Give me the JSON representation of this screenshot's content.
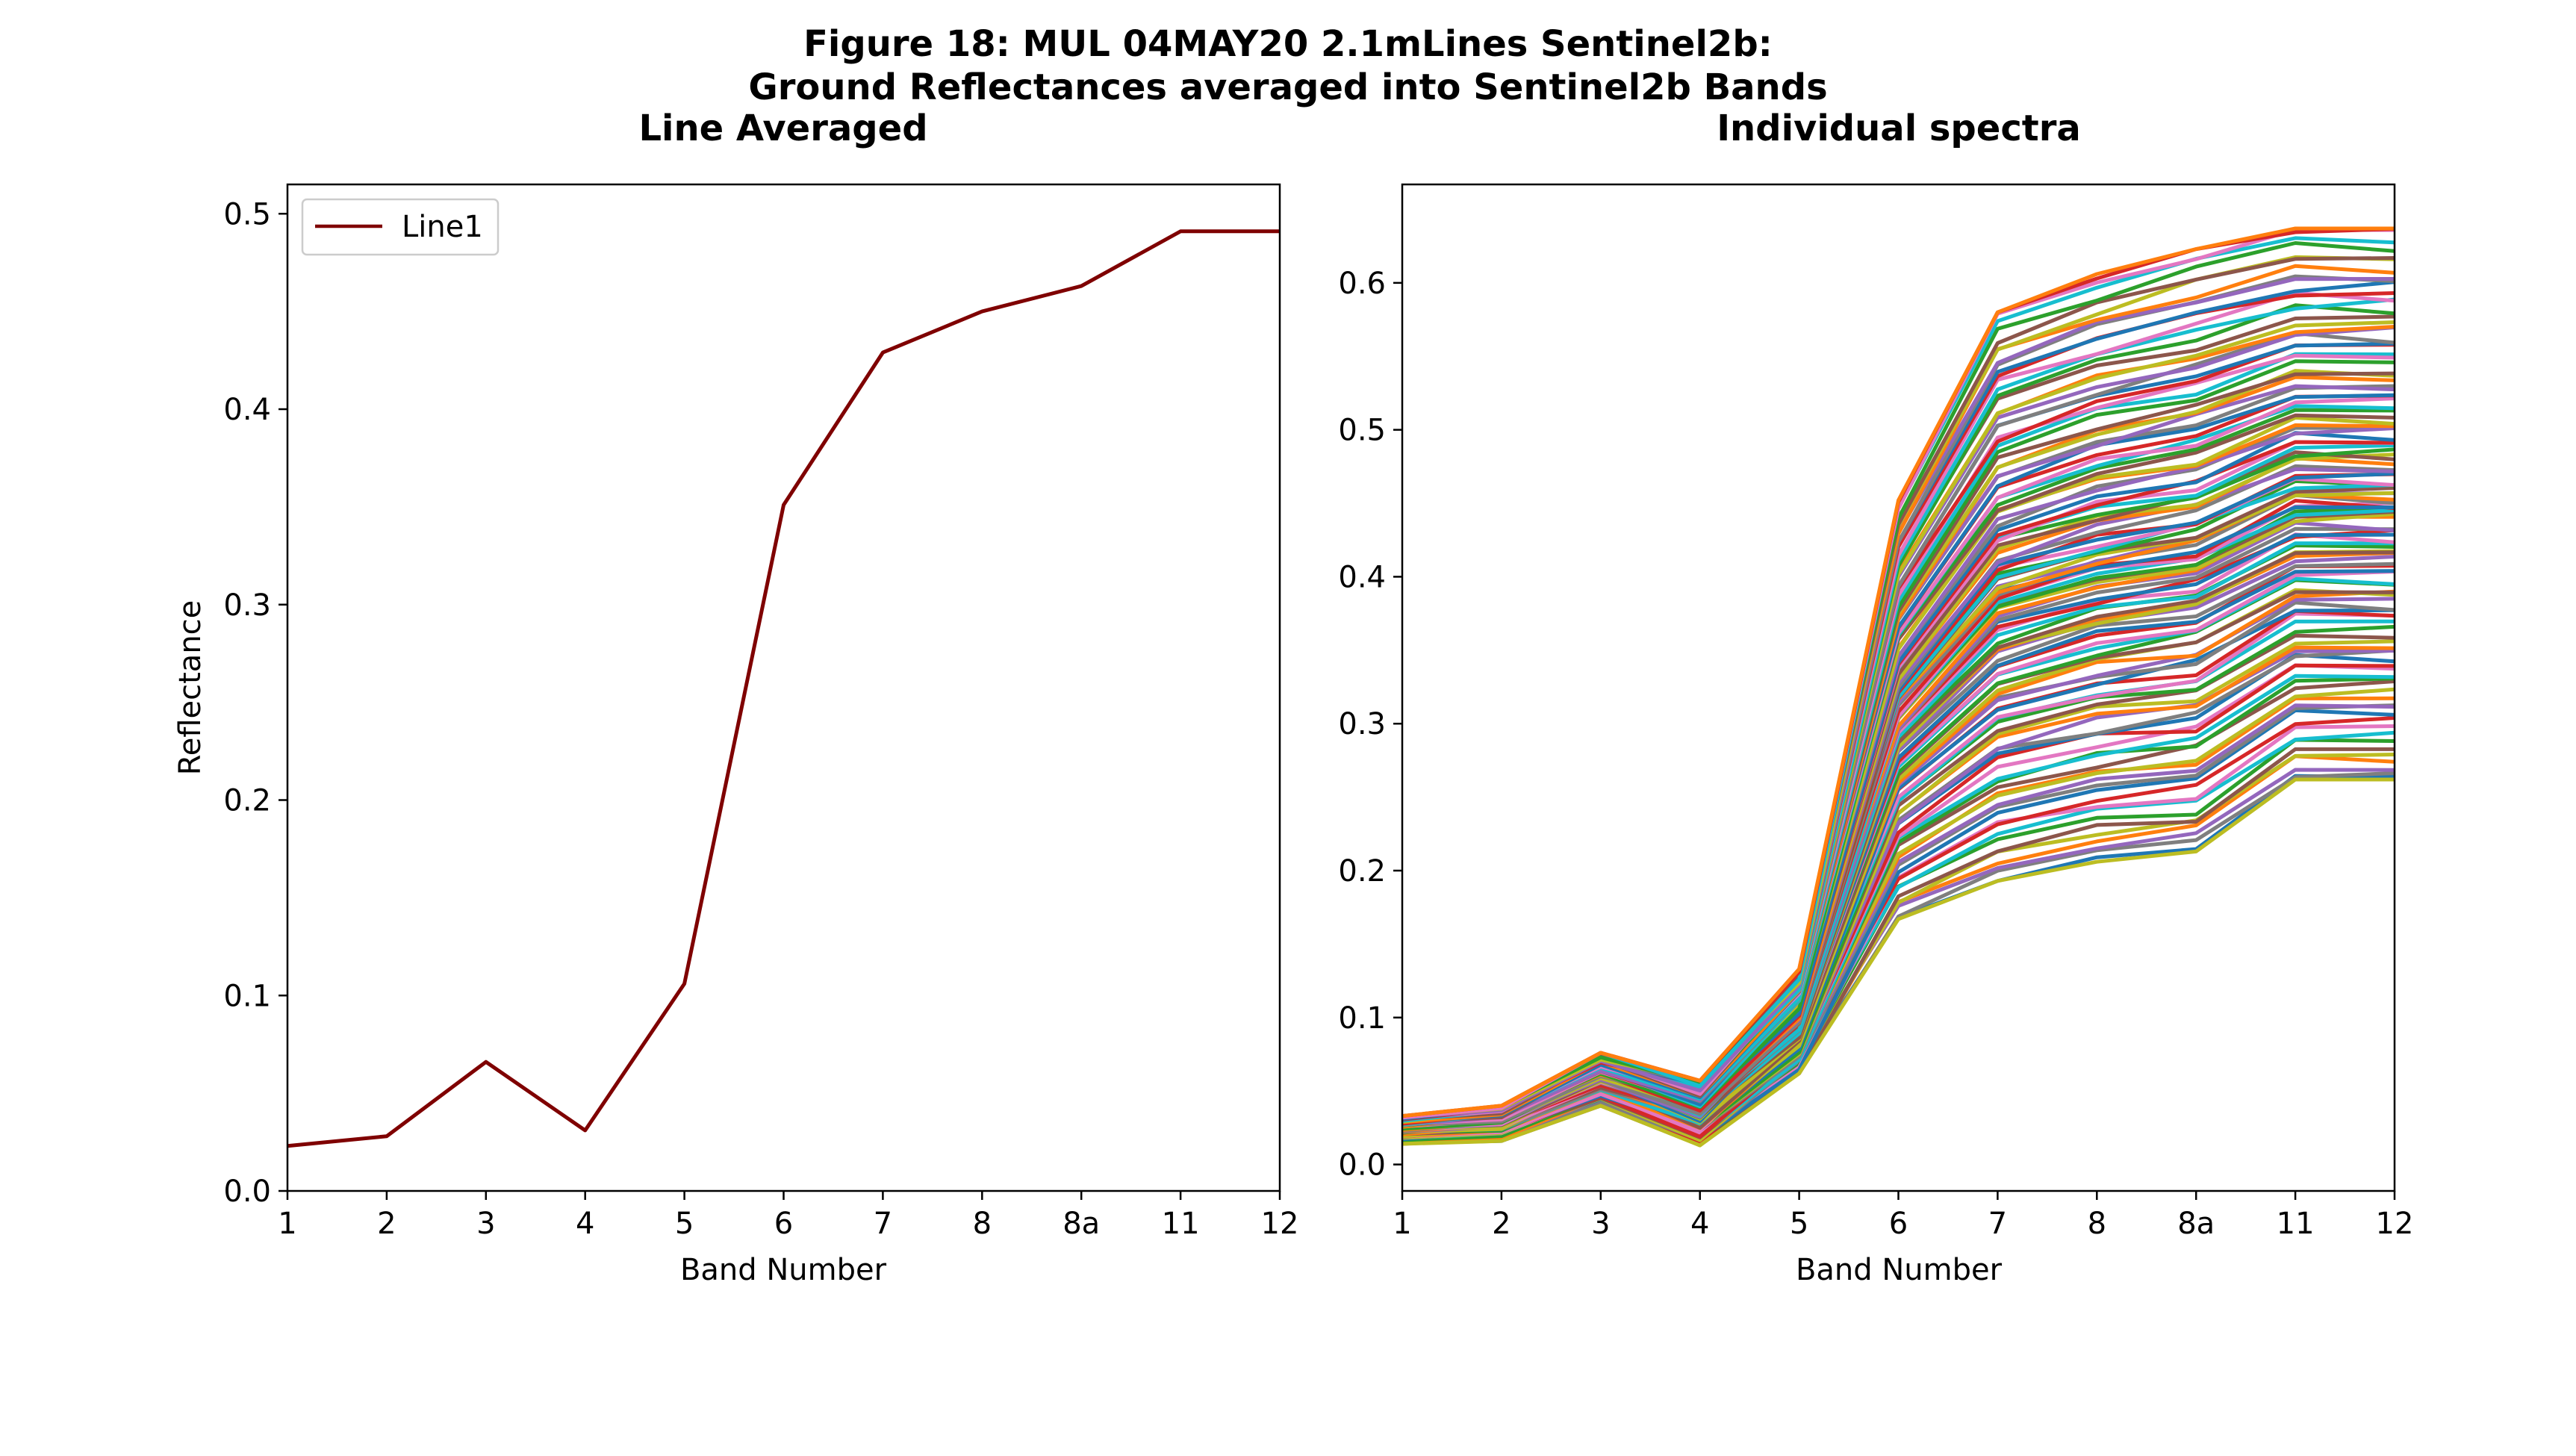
{
  "figure": {
    "title_line1": "Figure 18: MUL 04MAY20 2.1mLines Sentinel2b:",
    "title_line2": "Ground Reflectances averaged into Sentinel2b Bands"
  },
  "chart_data": [
    {
      "type": "line",
      "title": "Line Averaged",
      "xlabel": "Band Number",
      "ylabel": "Reflectance",
      "categories": [
        "1",
        "2",
        "3",
        "4",
        "5",
        "6",
        "7",
        "8",
        "8a",
        "11",
        "12"
      ],
      "ylim": [
        0.0,
        0.515
      ],
      "yticks": [
        0.0,
        0.1,
        0.2,
        0.3,
        0.4,
        0.5
      ],
      "ytick_labels": [
        "0.0",
        "0.1",
        "0.2",
        "0.3",
        "0.4",
        "0.5"
      ],
      "legend": "top-left",
      "grid": false,
      "series": [
        {
          "name": "Line1",
          "color": "#7f0000",
          "values": [
            0.023,
            0.028,
            0.066,
            0.031,
            0.106,
            0.351,
            0.429,
            0.45,
            0.463,
            0.491,
            0.491
          ]
        }
      ]
    },
    {
      "type": "line",
      "title": "Individual spectra",
      "xlabel": "Band Number",
      "ylabel": "",
      "categories": [
        "1",
        "2",
        "3",
        "4",
        "5",
        "6",
        "7",
        "8",
        "8a",
        "11",
        "12"
      ],
      "ylim": [
        -0.018,
        0.667
      ],
      "yticks": [
        0.0,
        0.1,
        0.2,
        0.3,
        0.4,
        0.5,
        0.6
      ],
      "ytick_labels": [
        "0.0",
        "0.1",
        "0.2",
        "0.3",
        "0.4",
        "0.5",
        "0.6"
      ],
      "grid": false,
      "series_count": 120,
      "series_envelope_upper": [
        0.033,
        0.04,
        0.076,
        0.057,
        0.133,
        0.452,
        0.58,
        0.606,
        0.623,
        0.637,
        0.637
      ],
      "series_envelope_lower": [
        0.014,
        0.016,
        0.04,
        0.013,
        0.062,
        0.167,
        0.193,
        0.206,
        0.213,
        0.262,
        0.262
      ],
      "color_cycle": [
        "#1f77b4",
        "#ff7f0e",
        "#2ca02c",
        "#d62728",
        "#9467bd",
        "#8c564b",
        "#e377c2",
        "#7f7f7f",
        "#bcbd22",
        "#17becf"
      ]
    }
  ]
}
